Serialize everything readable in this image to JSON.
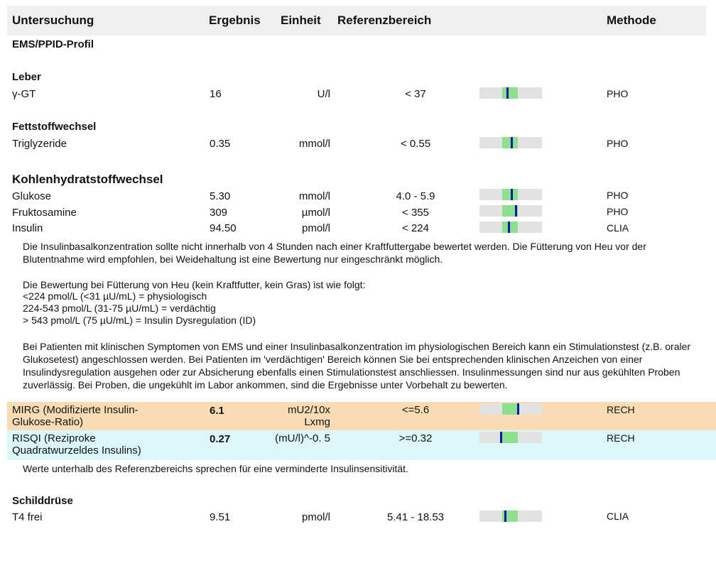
{
  "header": {
    "test": "Untersuchung",
    "result": "Ergebnis",
    "unit": "Einheit",
    "reference": "Referenzbereich",
    "method": "Methode"
  },
  "profile": "EMS/PPID-Profil",
  "sections": {
    "liver": "Leber",
    "lipid": "Fettstoffwechsel",
    "carb": "Kohlenhydratstoffwechsel",
    "thyroid": "Schilddrüse"
  },
  "rows": {
    "ggt": {
      "name": "γ-GT",
      "value": "16",
      "unit": "U/l",
      "ref": "< 37",
      "method": "PHO",
      "marker": 0.45
    },
    "tg": {
      "name": "Triglyzeride",
      "value": "0.35",
      "unit": "mmol/l",
      "ref": "< 0.55",
      "method": "PHO",
      "marker": 0.52
    },
    "glu": {
      "name": "Glukose",
      "value": "5.30",
      "unit": "mmol/l",
      "ref": "4.0 - 5.9",
      "method": "PHO",
      "marker": 0.52
    },
    "fru": {
      "name": "Fruktosamine",
      "value": "309",
      "unit": "µmol/l",
      "ref": "< 355",
      "method": "PHO",
      "marker": 0.58
    },
    "ins": {
      "name": "Insulin",
      "value": "94.50",
      "unit": "pmol/l",
      "ref": "< 224",
      "method": "CLIA",
      "marker": 0.47
    },
    "mirg": {
      "name": "MIRG (Modifizierte Insulin-Glukose-Ratio)",
      "value": "6.1",
      "unit": "mU2/10x Lxmg",
      "ref": "<=5.6",
      "method": "RECH",
      "marker": 0.62
    },
    "risqi": {
      "name": "RISQI (Reziproke Quadratwurzeldes Insulins)",
      "value": "0.27",
      "unit": "(mU/l)^-0. 5",
      "ref": ">=0.32",
      "method": "RECH",
      "marker": 0.35
    },
    "t4": {
      "name": "T4 frei",
      "value": "9.51",
      "unit": "pmol/l",
      "ref": "5.41 - 18.53",
      "method": "CLIA",
      "marker": 0.42
    }
  },
  "notes": {
    "insulin_1": "Die Insulinbasalkonzentration sollte nicht innerhalb von 4 Stunden nach einer Kraftfuttergabe bewertet werden. Die Fütterung von Heu vor der Blutentnahme wird empfohlen, bei Weidehaltung ist eine Bewertung nur eingeschränkt möglich.",
    "insulin_2a": "Die Bewertung bei Fütterung von Heu (kein Kraftfutter, kein Gras) ist wie folgt:",
    "insulin_2b": "<224 pmol/L (<31 µU/mL) = physiologisch",
    "insulin_2c": "224-543 pmol/L (31-75 µU/mL) = verdächtig",
    "insulin_2d": "> 543 pmol/L (75 µU/mL) = Insulin Dysregulation (ID)",
    "insulin_3": "Bei Patienten mit klinischen Symptomen von EMS und einer Insulinbasalkonzentration im physiologischen Bereich kann ein Stimulationstest (z.B. oraler Glukosetest) angeschlossen werden. Bei Patienten im 'verdächtigen' Bereich können Sie bei entsprechenden klinischen Anzeichen von einer Insulindysregulation ausgehen oder zur Absicherung ebenfalls einen Stimulationstest anschliessen. Insulinmessungen sind nur aus gekühlten Proben zuverlässig. Bei Proben, die ungekühlt im Labor ankommen, sind die Ergebnisse unter Vorbehalt zu bewerten.",
    "risqi": "Werte unterhalb des Referenzbereichs sprechen für eine verminderte Insulinsensitivität."
  },
  "colors": {
    "header_bg": "#efefef",
    "bar_bg": "#e2e2e2",
    "bar_green": "#8de08d",
    "marker": "#0a1aa8",
    "highlight_orange": "#f9dcb3",
    "highlight_cyan": "#dcf7f7"
  }
}
